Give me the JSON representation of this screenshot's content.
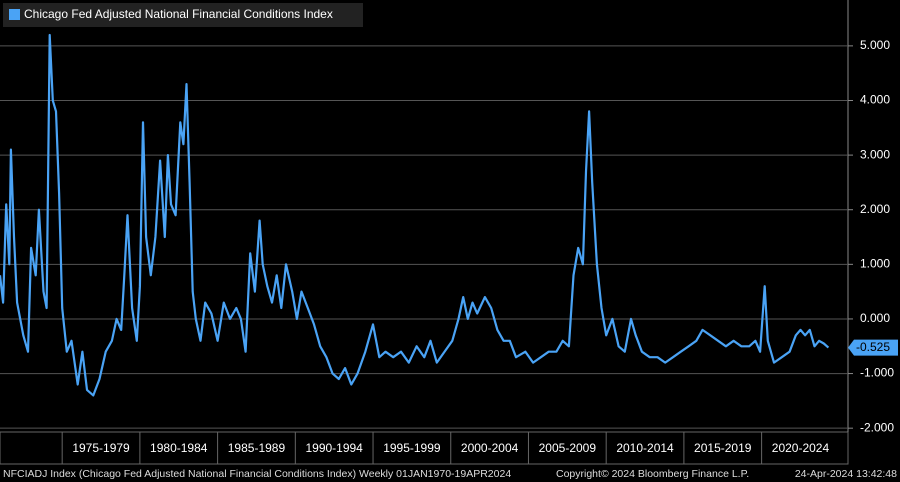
{
  "chart_data": {
    "type": "line",
    "legend": "Chicago Fed Adjusted National Financial Conditions Index",
    "footer_left": "NFCIADJ Index (Chicago Fed Adjusted National Financial Conditions Index)  Weekly 01JAN1970-19APR2024",
    "footer_mid": "Copyright© 2024 Bloomberg Finance L.P.",
    "footer_right": "24-Apr-2024 13:42:48",
    "x": [
      1971.0,
      1971.2,
      1971.4,
      1971.6,
      1971.7,
      1971.9,
      1972.1,
      1972.5,
      1972.8,
      1973.0,
      1973.3,
      1973.5,
      1973.8,
      1974.0,
      1974.2,
      1974.4,
      1974.6,
      1974.8,
      1975.0,
      1975.3,
      1975.6,
      1976.0,
      1976.3,
      1976.6,
      1977.0,
      1977.4,
      1977.8,
      1978.2,
      1978.5,
      1978.8,
      1979.0,
      1979.2,
      1979.5,
      1979.8,
      1980.0,
      1980.2,
      1980.4,
      1980.7,
      1981.0,
      1981.3,
      1981.6,
      1981.8,
      1982.0,
      1982.3,
      1982.6,
      1982.8,
      1983.0,
      1983.2,
      1983.4,
      1983.6,
      1983.9,
      1984.2,
      1984.6,
      1985.0,
      1985.4,
      1985.8,
      1986.2,
      1986.5,
      1986.8,
      1987.1,
      1987.4,
      1987.7,
      1987.9,
      1988.2,
      1988.5,
      1988.8,
      1989.1,
      1989.4,
      1989.8,
      1990.1,
      1990.4,
      1990.8,
      1991.2,
      1991.6,
      1992.0,
      1992.4,
      1992.8,
      1993.2,
      1993.6,
      1994.0,
      1994.5,
      1995.0,
      1995.4,
      1995.8,
      1996.3,
      1996.8,
      1997.3,
      1997.8,
      1998.3,
      1998.7,
      1999.1,
      1999.6,
      2000.1,
      2000.5,
      2000.8,
      2001.1,
      2001.4,
      2001.7,
      2002.2,
      2002.6,
      2003.0,
      2003.4,
      2003.8,
      2004.2,
      2004.8,
      2005.3,
      2005.8,
      2006.3,
      2006.8,
      2007.2,
      2007.6,
      2007.9,
      2008.2,
      2008.5,
      2008.7,
      2008.9,
      2009.1,
      2009.4,
      2009.7,
      2010.0,
      2010.4,
      2010.8,
      2011.2,
      2011.6,
      2011.9,
      2012.3,
      2012.8,
      2013.3,
      2013.8,
      2014.3,
      2014.8,
      2015.3,
      2015.8,
      2016.2,
      2016.7,
      2017.2,
      2017.7,
      2018.2,
      2018.7,
      2019.2,
      2019.6,
      2019.9,
      2020.2,
      2020.4,
      2020.8,
      2021.3,
      2021.8,
      2022.2,
      2022.5,
      2022.8,
      2023.1,
      2023.4,
      2023.7,
      2024.0,
      2024.3
    ],
    "series": [
      {
        "name": "Chicago Fed Adjusted National Financial Conditions Index",
        "color": "#4aa3f5",
        "values": [
          0.8,
          0.3,
          2.1,
          1.0,
          3.1,
          1.5,
          0.3,
          -0.3,
          -0.6,
          1.3,
          0.8,
          2.0,
          0.5,
          0.2,
          5.2,
          4.0,
          3.8,
          2.3,
          0.2,
          -0.6,
          -0.4,
          -1.2,
          -0.6,
          -1.3,
          -1.4,
          -1.1,
          -0.6,
          -0.4,
          0.0,
          -0.2,
          0.8,
          1.9,
          0.2,
          -0.4,
          0.6,
          3.6,
          1.5,
          0.8,
          1.5,
          2.9,
          1.5,
          3.0,
          2.1,
          1.9,
          3.6,
          3.2,
          4.3,
          2.5,
          0.5,
          0.0,
          -0.4,
          0.3,
          0.1,
          -0.4,
          0.3,
          0.0,
          0.2,
          0.0,
          -0.6,
          1.2,
          0.5,
          1.8,
          1.0,
          0.6,
          0.3,
          0.8,
          0.2,
          1.0,
          0.5,
          0.0,
          0.5,
          0.2,
          -0.1,
          -0.5,
          -0.7,
          -1.0,
          -1.1,
          -0.9,
          -1.2,
          -1.0,
          -0.6,
          -0.1,
          -0.7,
          -0.6,
          -0.7,
          -0.6,
          -0.8,
          -0.5,
          -0.7,
          -0.4,
          -0.8,
          -0.6,
          -0.4,
          0.0,
          0.4,
          0.0,
          0.3,
          0.1,
          0.4,
          0.2,
          -0.2,
          -0.4,
          -0.4,
          -0.7,
          -0.6,
          -0.8,
          -0.7,
          -0.6,
          -0.6,
          -0.4,
          -0.5,
          0.8,
          1.3,
          1.0,
          2.7,
          3.8,
          2.5,
          1.0,
          0.2,
          -0.3,
          0.0,
          -0.5,
          -0.6,
          0.0,
          -0.3,
          -0.6,
          -0.7,
          -0.7,
          -0.8,
          -0.7,
          -0.6,
          -0.5,
          -0.4,
          -0.2,
          -0.3,
          -0.4,
          -0.5,
          -0.4,
          -0.5,
          -0.5,
          -0.4,
          -0.6,
          0.6,
          -0.4,
          -0.8,
          -0.7,
          -0.6,
          -0.3,
          -0.2,
          -0.3,
          -0.2,
          -0.5,
          -0.4,
          -0.45,
          -0.525
        ]
      }
    ],
    "last_label": {
      "value": -0.525,
      "label": "-0.525"
    },
    "xlim": [
      1971,
      2024.4
    ],
    "xticks": [
      {
        "value": 1975,
        "label": "1975-1979"
      },
      {
        "value": 1980,
        "label": "1980-1984"
      },
      {
        "value": 1985,
        "label": "1985-1989"
      },
      {
        "value": 1990,
        "label": "1990-1994"
      },
      {
        "value": 1995,
        "label": "1995-1999"
      },
      {
        "value": 2000,
        "label": "2000-2004"
      },
      {
        "value": 2005,
        "label": "2005-2009"
      },
      {
        "value": 2010,
        "label": "2010-2014"
      },
      {
        "value": 2015,
        "label": "2015-2019"
      },
      {
        "value": 2020,
        "label": "2020-2024"
      }
    ],
    "ylim": [
      -2.07,
      5.84
    ],
    "yticks": [
      {
        "value": 5,
        "label": "5.000"
      },
      {
        "value": 4,
        "label": "4.000"
      },
      {
        "value": 3,
        "label": "3.000"
      },
      {
        "value": 2,
        "label": "2.000"
      },
      {
        "value": 1,
        "label": "1.000"
      },
      {
        "value": 0,
        "label": "0.000"
      },
      {
        "value": -1,
        "label": "-1.000"
      },
      {
        "value": -2,
        "label": "-2.000"
      }
    ],
    "grid": true
  }
}
